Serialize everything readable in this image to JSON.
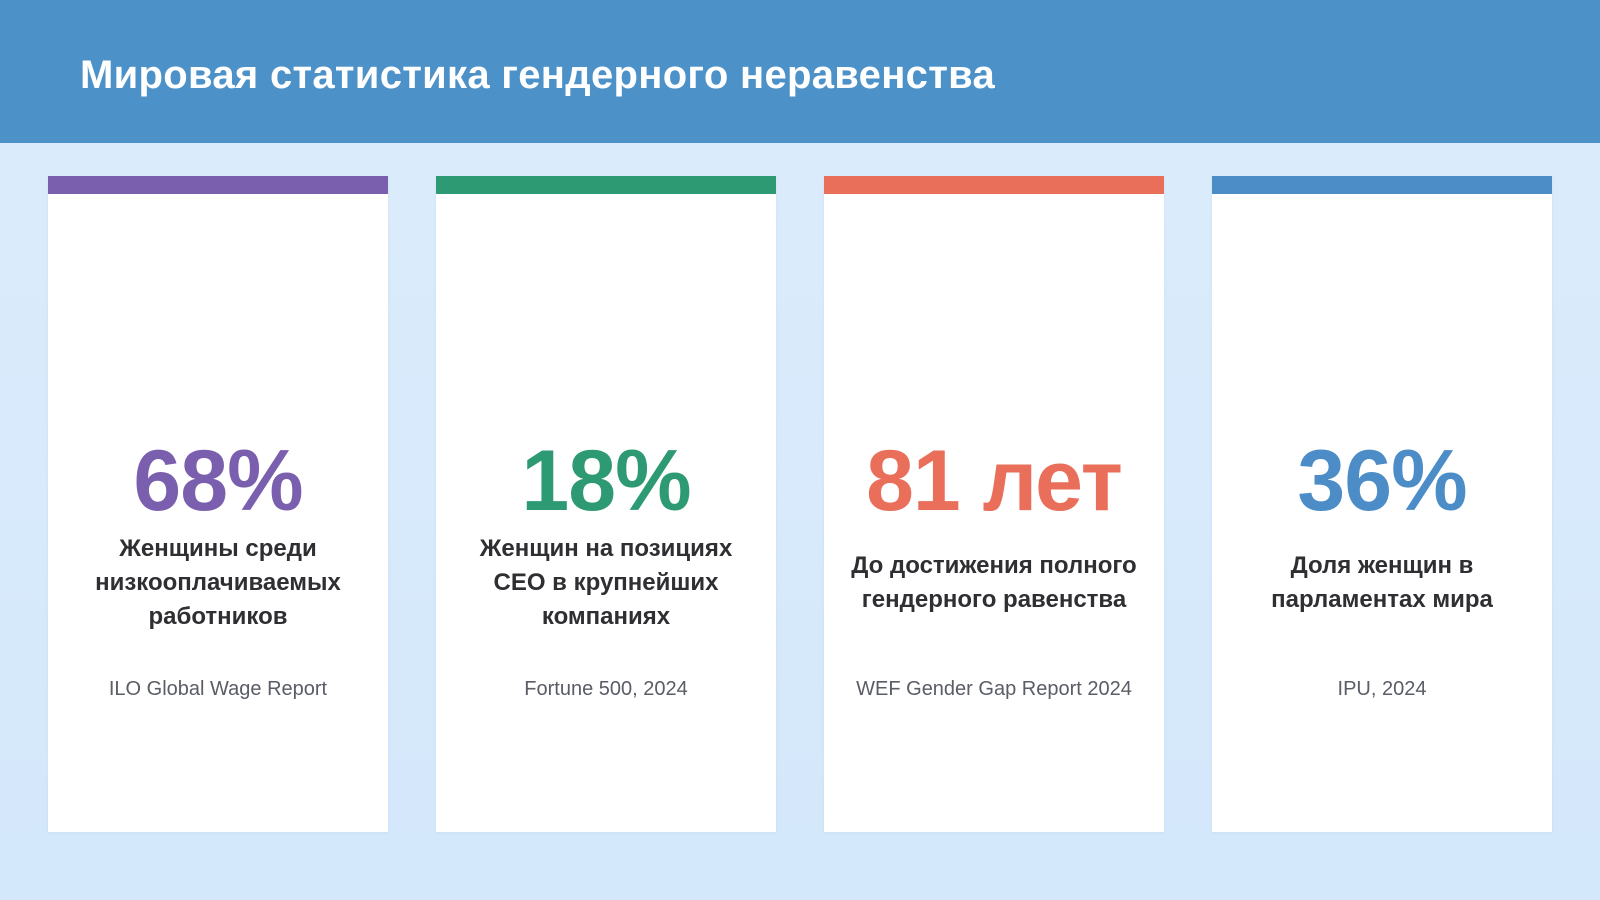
{
  "header": {
    "title": "Мировая статистика гендерного неравенства"
  },
  "cards": [
    {
      "value": "68%",
      "description": "Женщины среди низкооплачиваемых работников",
      "source": "ILO Global Wage Report",
      "accent_color": "#7a5fae"
    },
    {
      "value": "18%",
      "description": "Женщин на позициях CEO в крупнейших компаниях",
      "source": "Fortune 500, 2024",
      "accent_color": "#2e9a74"
    },
    {
      "value": "81 лет",
      "description": "До достижения полного гендерного равенства",
      "source": "WEF Gender Gap Report 2024",
      "accent_color": "#ea6f5a"
    },
    {
      "value": "36%",
      "description": "Доля женщин в парламентах мира",
      "source": "IPU, 2024",
      "accent_color": "#4c8dc8"
    }
  ],
  "colors": {
    "header_background": "#4c92c8",
    "page_background": "#dcecfb",
    "card_background": "#ffffff"
  }
}
